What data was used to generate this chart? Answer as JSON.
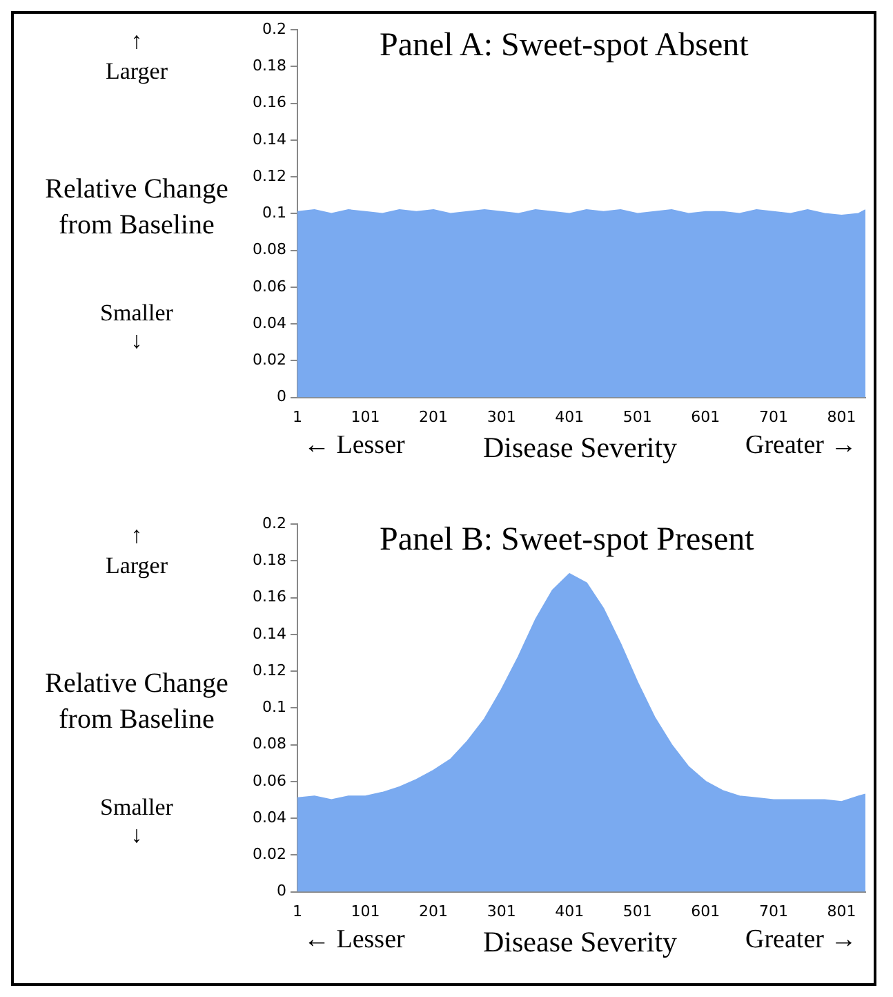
{
  "chart_data": [
    {
      "type": "area",
      "title": "Panel A: Sweet-spot Absent",
      "ylabel": "Relative Change from Baseline",
      "xlabel": "Disease Severity",
      "annotations": [
        "↑",
        "Larger",
        "Smaller",
        "↓",
        "← Lesser",
        "Greater →"
      ],
      "x": [
        1,
        26,
        51,
        76,
        101,
        126,
        151,
        176,
        201,
        226,
        251,
        276,
        301,
        326,
        351,
        376,
        401,
        426,
        451,
        476,
        501,
        526,
        551,
        576,
        601,
        626,
        651,
        676,
        701,
        726,
        751,
        776,
        801,
        826,
        836
      ],
      "series": [
        {
          "color": "#7aaaf0",
          "values": [
            0.101,
            0.102,
            0.1,
            0.102,
            0.101,
            0.1,
            0.102,
            0.101,
            0.102,
            0.1,
            0.101,
            0.102,
            0.101,
            0.1,
            0.102,
            0.101,
            0.1,
            0.102,
            0.101,
            0.102,
            0.1,
            0.101,
            0.102,
            0.1,
            0.101,
            0.101,
            0.1,
            0.102,
            0.101,
            0.1,
            0.102,
            0.1,
            0.099,
            0.1,
            0.102
          ]
        }
      ],
      "xlim": [
        1,
        836
      ],
      "xticks": [
        1,
        101,
        201,
        301,
        401,
        501,
        601,
        701,
        801
      ],
      "ylim": [
        0,
        0.2
      ],
      "yticks": [
        0,
        0.02,
        0.04,
        0.06,
        0.08,
        0.1,
        0.12,
        0.14,
        0.16,
        0.18,
        0.2
      ],
      "grid": false,
      "legend": false
    },
    {
      "type": "area",
      "title": "Panel B: Sweet-spot Present",
      "ylabel": "Relative Change from Baseline",
      "xlabel": "Disease Severity",
      "annotations": [
        "↑",
        "Larger",
        "Smaller",
        "↓",
        "← Lesser",
        "Greater →"
      ],
      "x": [
        1,
        26,
        51,
        76,
        101,
        126,
        151,
        176,
        201,
        226,
        251,
        276,
        301,
        326,
        351,
        376,
        401,
        426,
        451,
        476,
        501,
        526,
        551,
        576,
        601,
        626,
        651,
        676,
        701,
        726,
        751,
        776,
        801,
        826,
        836
      ],
      "series": [
        {
          "color": "#7aaaf0",
          "values": [
            0.051,
            0.052,
            0.05,
            0.052,
            0.052,
            0.054,
            0.057,
            0.061,
            0.066,
            0.072,
            0.082,
            0.094,
            0.11,
            0.128,
            0.148,
            0.164,
            0.173,
            0.168,
            0.154,
            0.135,
            0.114,
            0.095,
            0.08,
            0.068,
            0.06,
            0.055,
            0.052,
            0.051,
            0.05,
            0.05,
            0.05,
            0.05,
            0.049,
            0.052,
            0.053
          ]
        }
      ],
      "xlim": [
        1,
        836
      ],
      "xticks": [
        1,
        101,
        201,
        301,
        401,
        501,
        601,
        701,
        801
      ],
      "ylim": [
        0,
        0.2
      ],
      "yticks": [
        0,
        0.02,
        0.04,
        0.06,
        0.08,
        0.1,
        0.12,
        0.14,
        0.16,
        0.18,
        0.2
      ],
      "grid": false,
      "legend": false
    }
  ]
}
